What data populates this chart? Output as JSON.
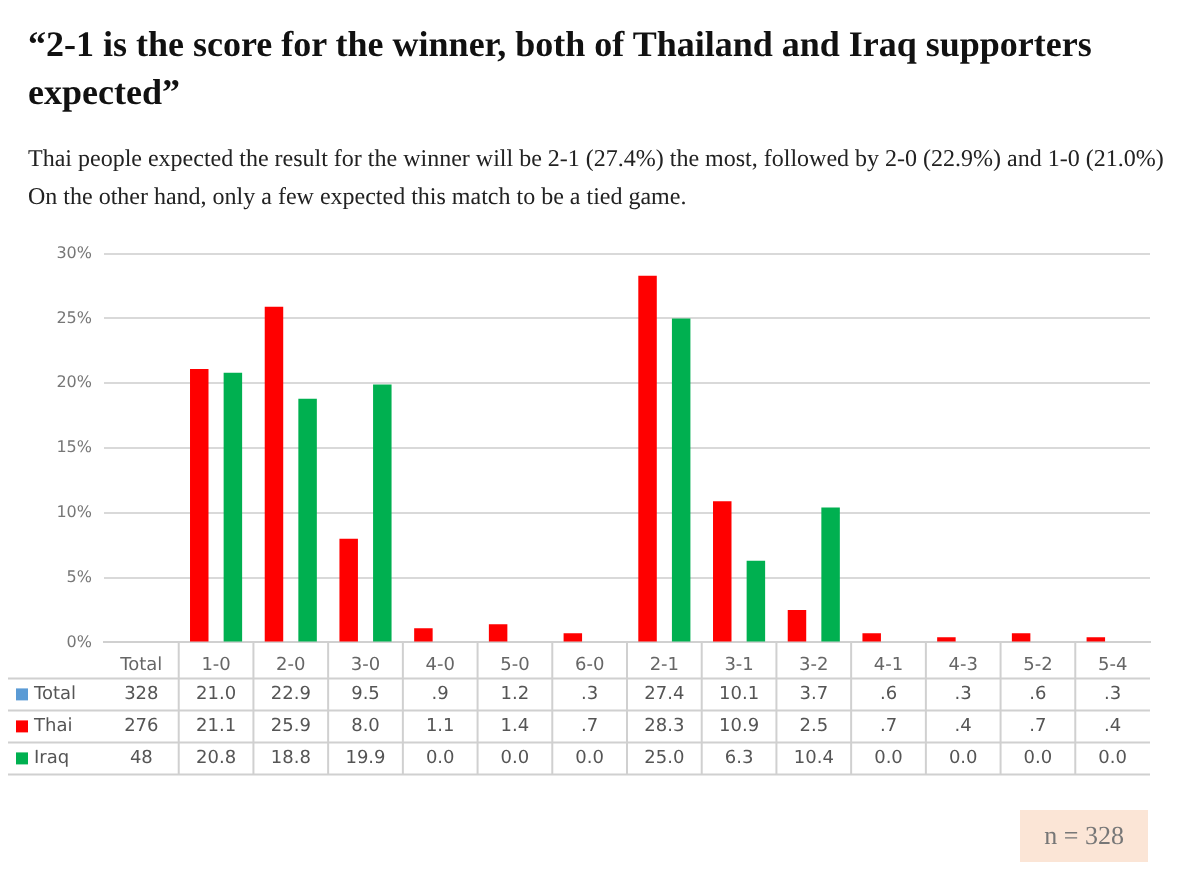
{
  "chart_data": {
    "type": "bar",
    "title": "“2-1 is the score for the winner, both of Thailand and Iraq supporters expected”",
    "subtitle": "Thai people expected the result for the winner will be 2-1 (27.4%) the most, followed by 2-0 (22.9%) and 1-0 (21.0%) On the other hand, only a few expected this match to be a tied game.",
    "categories": [
      "Total",
      "1-0",
      "2-0",
      "3-0",
      "4-0",
      "5-0",
      "6-0",
      "2-1",
      "3-1",
      "3-2",
      "4-1",
      "4-3",
      "5-2",
      "5-4"
    ],
    "series": [
      {
        "name": "Total",
        "color": "#5b9bd5",
        "values": [
          null,
          null,
          null,
          null,
          null,
          null,
          null,
          null,
          null,
          null,
          null,
          null,
          null,
          null
        ],
        "value_labels": [
          "328",
          "21.0",
          "22.9",
          "9.5",
          ".9",
          "1.2",
          ".3",
          "27.4",
          "10.1",
          "3.7",
          ".6",
          ".3",
          ".6",
          ".3"
        ]
      },
      {
        "name": "Thai",
        "color": "#ff0000",
        "values": [
          null,
          21.1,
          25.9,
          8.0,
          1.1,
          1.4,
          0.7,
          28.3,
          10.9,
          2.5,
          0.7,
          0.4,
          0.7,
          0.4
        ],
        "value_labels": [
          "276",
          "21.1",
          "25.9",
          "8.0",
          "1.1",
          "1.4",
          ".7",
          "28.3",
          "10.9",
          "2.5",
          ".7",
          ".4",
          ".7",
          ".4"
        ]
      },
      {
        "name": "Iraq",
        "color": "#00b050",
        "values": [
          null,
          20.8,
          18.8,
          19.9,
          0.0,
          0.0,
          0.0,
          25.0,
          6.3,
          10.4,
          0.0,
          0.0,
          0.0,
          0.0
        ],
        "value_labels": [
          "48",
          "20.8",
          "18.8",
          "19.9",
          "0.0",
          "0.0",
          "0.0",
          "25.0",
          "6.3",
          "10.4",
          "0.0",
          "0.0",
          "0.0",
          "0.0"
        ]
      }
    ],
    "ylim": [
      0,
      30
    ],
    "yticks": [
      {
        "value": 0,
        "label": "0%"
      },
      {
        "value": 5,
        "label": "5%"
      },
      {
        "value": 10,
        "label": "10%"
      },
      {
        "value": 15,
        "label": "15%"
      },
      {
        "value": 20,
        "label": "20%"
      },
      {
        "value": 25,
        "label": "25%"
      },
      {
        "value": 30,
        "label": "30%"
      }
    ],
    "grid": "y",
    "legend": "bottom",
    "annotations": [
      "n = 328"
    ]
  }
}
